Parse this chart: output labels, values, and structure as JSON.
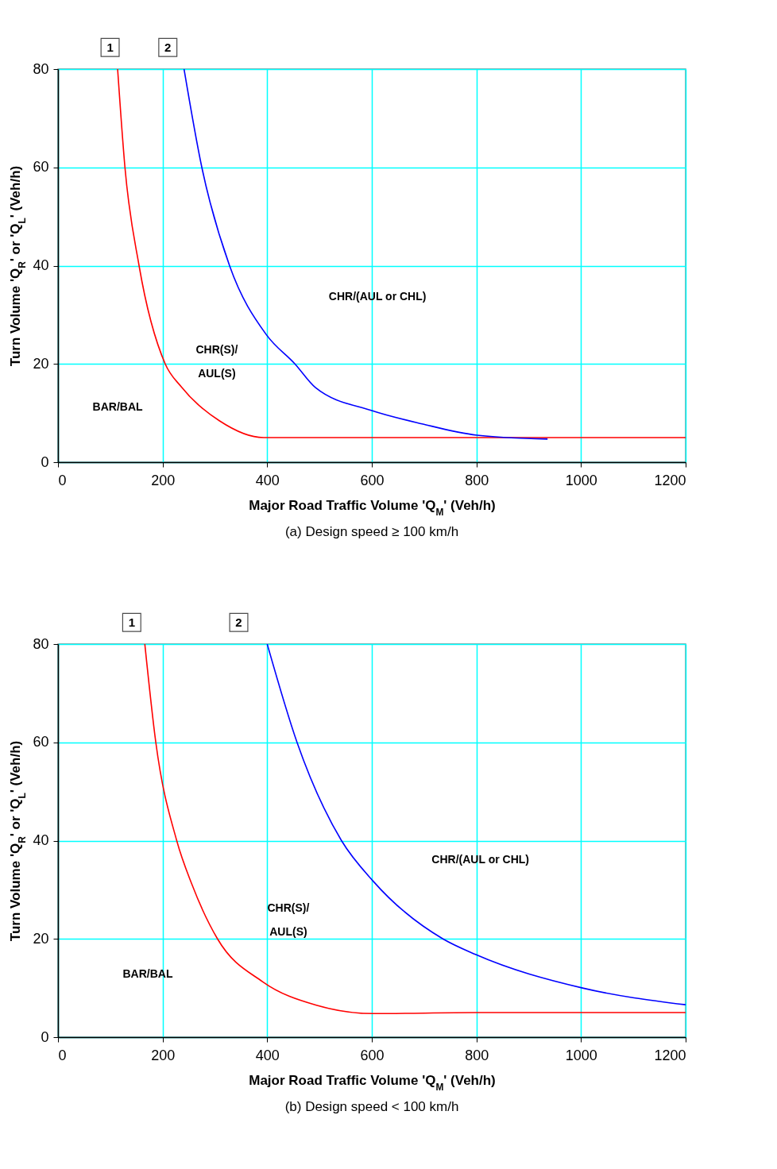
{
  "chart_data": [
    {
      "type": "line",
      "title": "(a)  Design speed ≥ 100 km/h",
      "xlabel": "Major Road Traffic Volume 'Q$_{M}$' (Veh/h)",
      "ylabel": "Turn Volume 'Q$_{R}$' or 'Q$_{L}$' (Veh/h)",
      "xlim": [
        0,
        1200
      ],
      "xticks": [
        0,
        200,
        400,
        600,
        800,
        1000,
        1200
      ],
      "ylim": [
        0,
        80
      ],
      "yticks": [
        0,
        20,
        40,
        60,
        80
      ],
      "grid": true,
      "series": [
        {
          "color": "#ff0000",
          "x": [
            114,
            128,
            155,
            205,
            236,
            309,
            393,
            450,
            600,
            800,
            1000,
            1200
          ],
          "values": [
            80,
            60,
            40,
            20,
            15.3,
            8.4,
            5,
            5,
            5,
            5,
            5,
            5
          ]
        },
        {
          "color": "#0000ff",
          "x": [
            241,
            275,
            328,
            398,
            453,
            492,
            600,
            696,
            801,
            936
          ],
          "values": [
            80,
            60,
            40,
            26,
            20,
            15.2,
            10.5,
            7.8,
            5.5,
            4.7
          ]
        }
      ],
      "annotations": [
        "1",
        "2",
        "BAR/BAL",
        "CHR(S)/\nAUL(S)",
        "CHR/(AUL or CHL)"
      ]
    },
    {
      "type": "line",
      "title": "(b)  Design speed < 100 km/h",
      "xlabel": "Major Road Traffic Volume 'Q$_{M}$' (Veh/h)",
      "ylabel": "Turn Volume 'Q$_{R}$' or 'Q$_{L}$' (Veh/h)",
      "xlim": [
        0,
        1200
      ],
      "xticks": [
        0,
        200,
        400,
        600,
        800,
        1000,
        1200
      ],
      "ylim": [
        0,
        80
      ],
      "yticks": [
        0,
        20,
        40,
        60,
        80
      ],
      "grid": true,
      "series": [
        {
          "color": "#ff0000",
          "x": [
            166,
            187,
            227,
            256,
            305,
            391,
            494,
            603,
            800,
            1000,
            1200
          ],
          "values": [
            80,
            60,
            40,
            31.1,
            20,
            11.3,
            6.5,
            4.8,
            5,
            5,
            5
          ]
        },
        {
          "color": "#0000ff",
          "x": [
            400,
            457,
            542,
            603,
            736,
            799,
            1003,
            1200
          ],
          "values": [
            80,
            60,
            40,
            31.7,
            20,
            16.8,
            10,
            6.6
          ]
        }
      ],
      "annotations": [
        "1",
        "2",
        "BAR/BAL",
        "CHR(S)/\nAUL(S)",
        "CHR/(AUL or CHL)"
      ]
    }
  ]
}
